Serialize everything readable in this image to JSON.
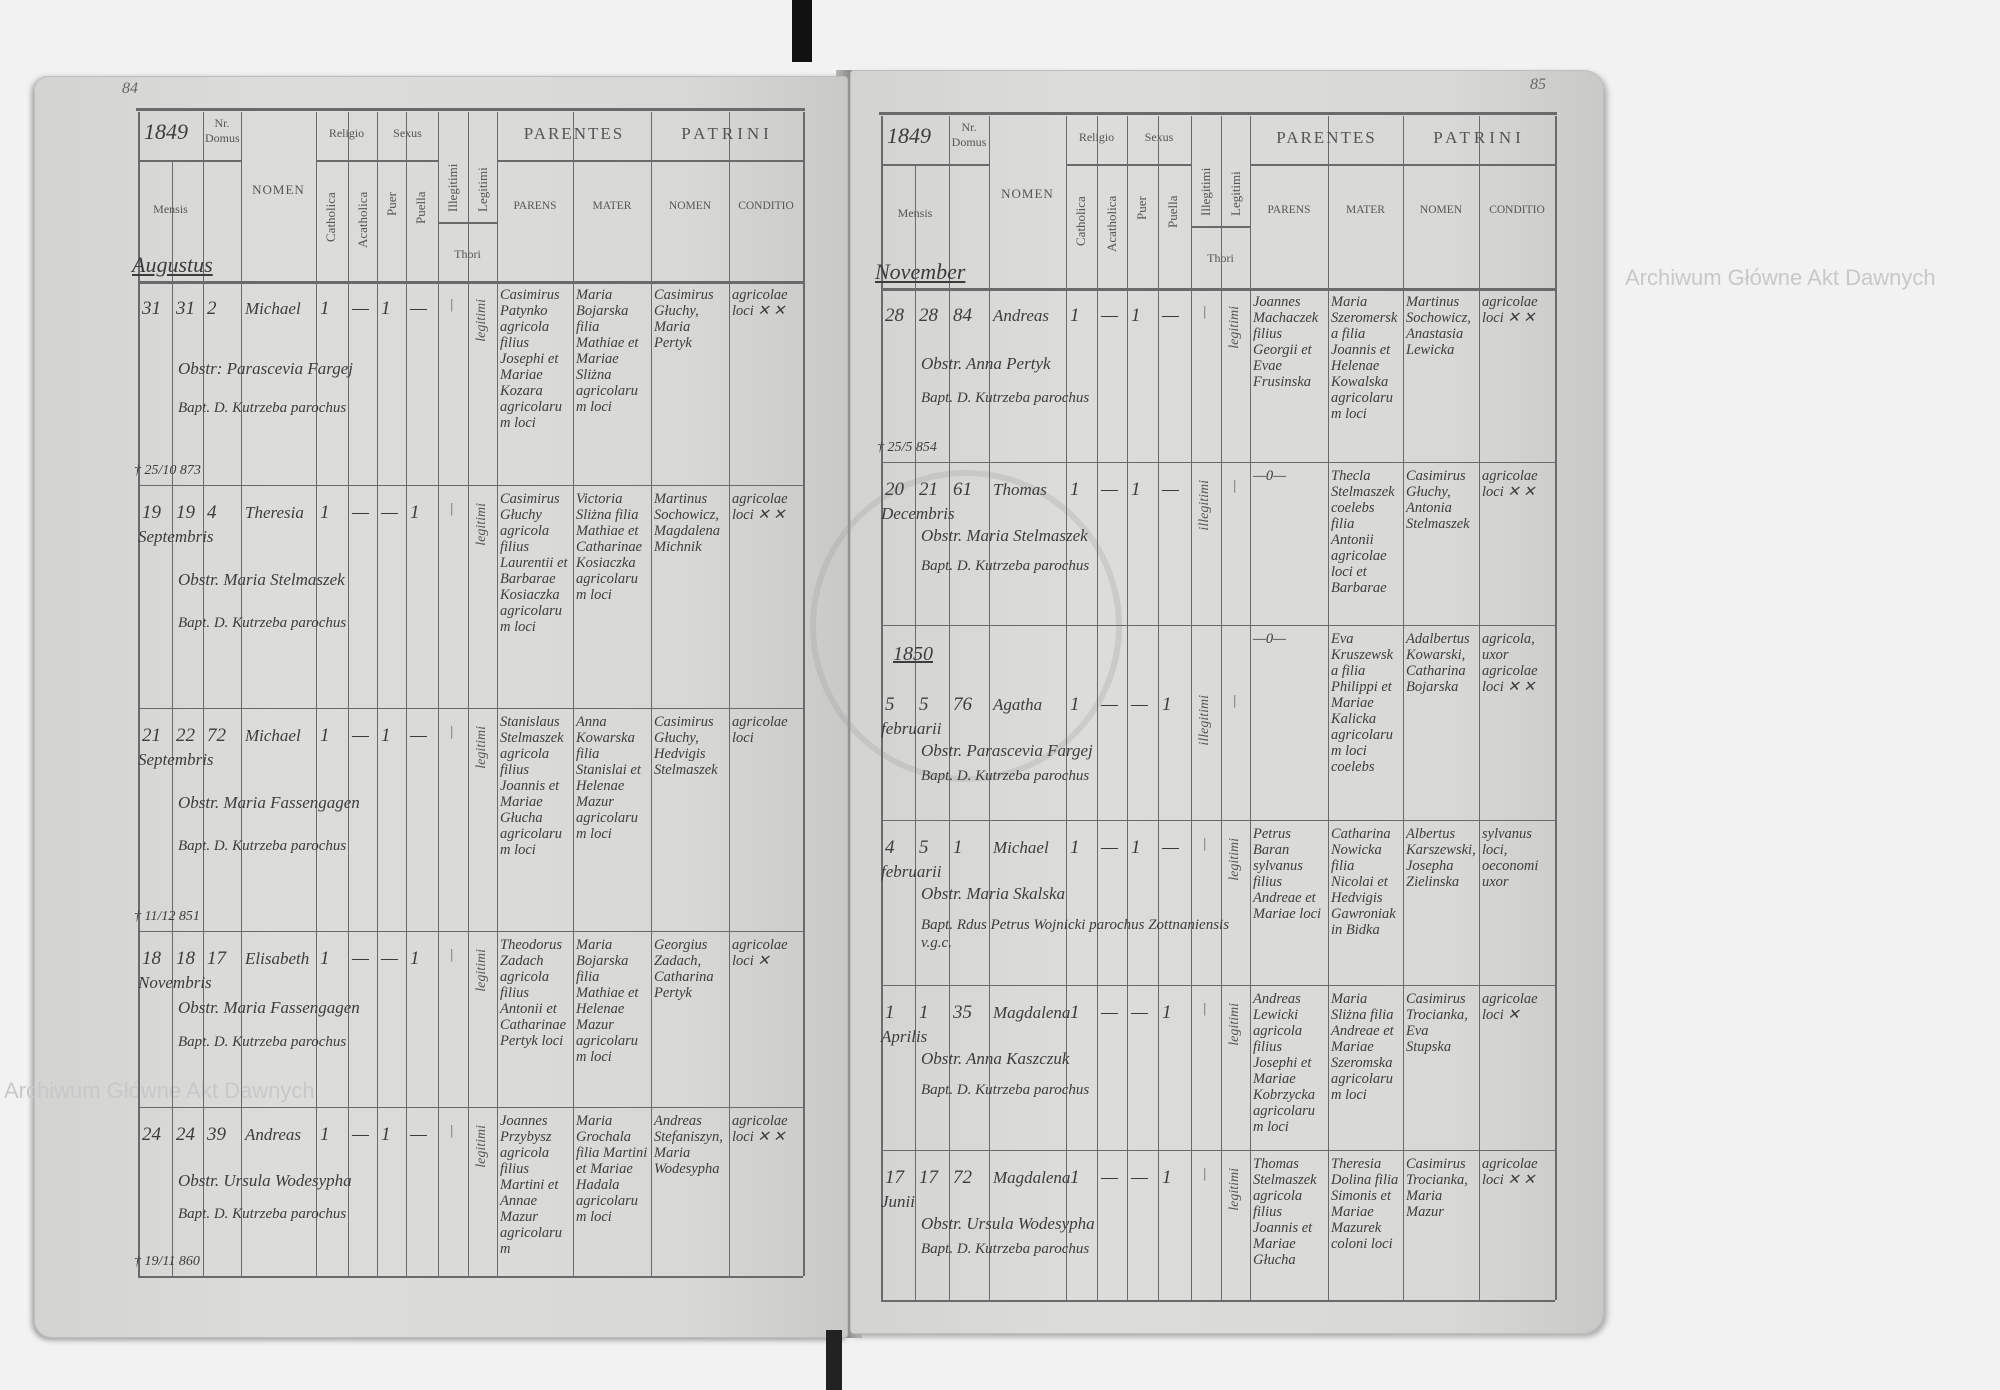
{
  "watermark": "Archiwum Główne Akt Dawnych",
  "seal_text": "ARCHIWUM GŁÓWNE AKT DAWNYCH",
  "header": {
    "year_print": "18",
    "mensis": "Mensis",
    "nr": "Nr. Domus",
    "nomen": "NOMEN",
    "religio": "Religio",
    "sexus": "Sexus",
    "catholica": "Catholica",
    "acatholica": "Acatholica",
    "puer": "Puer",
    "puella": "Puella",
    "illegitimi": "Illegitimi",
    "legitimi": "Legitimi",
    "thori": "Thori",
    "parentes": "PARENTES",
    "patrini": "PATRINI",
    "parens": "PARENS",
    "mater": "MATER",
    "patrini_nomen": "NOMEN",
    "conditio": "CONDITIO"
  },
  "pages": [
    {
      "page_number": "84",
      "year": "1849",
      "month_heading": "Augustus",
      "rows": [
        {
          "birth": "31",
          "bapt": "31",
          "domus": "2",
          "nomen": "Michael",
          "cath": "1",
          "acath": "—",
          "puer": "1",
          "puella": "—",
          "illeg": "—",
          "thori": "legitimi",
          "month": "",
          "parens": "Casimirus Patynko agricola filius Josephi et Mariae Kozara agricolarum loci",
          "mater": "Maria Bojarska filia Mathiae et Mariae Sliżna agricolarum loci",
          "patrini": "Casimirus Głuchy, Maria Pertyk",
          "conditio": "agricolae loci ✕ ✕",
          "obst": "Obstr: Parascevia Fargej",
          "baptizans": "Bapt. D. Kutrzeba parochus",
          "death": "† 25/10 873"
        },
        {
          "birth": "19",
          "bapt": "19",
          "domus": "4",
          "nomen": "Theresia",
          "cath": "1",
          "acath": "—",
          "puer": "—",
          "puella": "1",
          "illeg": "—",
          "thori": "legitimi",
          "month": "Septembris",
          "parens": "Casimirus Głuchy agricola filius Laurentii et Barbarae Kosiaczka agricolarum loci",
          "mater": "Victoria Sliżna filia Mathiae et Catharinae Kosiaczka agricolarum loci",
          "patrini": "Martinus Sochowicz, Magdalena Michnik",
          "conditio": "agricolae loci ✕ ✕",
          "obst": "Obstr. Maria Stelmaszek",
          "baptizans": "Bapt. D. Kutrzeba parochus",
          "death": ""
        },
        {
          "birth": "21",
          "bapt": "22",
          "domus": "72",
          "nomen": "Michael",
          "cath": "1",
          "acath": "—",
          "puer": "1",
          "puella": "—",
          "illeg": "—",
          "thori": "legitimi",
          "month": "Septembris",
          "parens": "Stanislaus Stelmaszek agricola filius Joannis et Mariae Głucha agricolarum loci",
          "mater": "Anna Kowarska filia Stanislai et Helenae Mazur agricolarum loci",
          "patrini": "Casimirus Głuchy, Hedvigis Stelmaszek",
          "conditio": "agricolae loci",
          "obst": "Obstr. Maria Fassengagen",
          "baptizans": "Bapt. D. Kutrzeba parochus",
          "death": "† 11/12 851"
        },
        {
          "birth": "18",
          "bapt": "18",
          "domus": "17",
          "nomen": "Elisabeth",
          "cath": "1",
          "acath": "—",
          "puer": "—",
          "puella": "1",
          "illeg": "—",
          "thori": "legitimi",
          "month": "Novembris",
          "parens": "Theodorus Zadach agricola filius Antonii et Catharinae Pertyk loci",
          "mater": "Maria Bojarska filia Mathiae et Helenae Mazur agricolarum loci",
          "patrini": "Georgius Zadach, Catharina Pertyk",
          "conditio": "agricolae loci ✕",
          "obst": "Obstr. Maria Fassengagen",
          "baptizans": "Bapt. D. Kutrzeba parochus",
          "death": ""
        },
        {
          "birth": "24",
          "bapt": "24",
          "domus": "39",
          "nomen": "Andreas",
          "cath": "1",
          "acath": "—",
          "puer": "1",
          "puella": "—",
          "illeg": "—",
          "thori": "legitimi",
          "month": "",
          "parens": "Joannes Przybysz agricola filius Martini et Annae Mazur agricolarum",
          "mater": "Maria Grochala filia Martini et Mariae Hadala agricolarum loci",
          "patrini": "Andreas Stefaniszyn, Maria Wodesypha",
          "conditio": "agricolae loci ✕ ✕",
          "obst": "Obstr. Ursula Wodesypha",
          "baptizans": "Bapt. D. Kutrzeba parochus",
          "death": "† 19/11 860"
        }
      ]
    },
    {
      "page_number": "85",
      "year": "1849",
      "month_heading": "November",
      "rows": [
        {
          "birth": "28",
          "bapt": "28",
          "domus": "84",
          "nomen": "Andreas",
          "cath": "1",
          "acath": "—",
          "puer": "1",
          "puella": "—",
          "illeg": "—",
          "thori": "legitimi",
          "month": "",
          "parens": "Joannes Machaczek filius Georgii et Evae Frusinska",
          "mater": "Maria Szeromerska filia Joannis et Helenae Kowalska agricolarum loci",
          "patrini": "Martinus Sochowicz, Anastasia Lewicka",
          "conditio": "agricolae loci ✕ ✕",
          "obst": "Obstr. Anna Pertyk",
          "baptizans": "Bapt. D. Kutrzeba parochus",
          "death": "† 25/5 854"
        },
        {
          "birth": "20",
          "bapt": "21",
          "domus": "61",
          "nomen": "Thomas",
          "cath": "1",
          "acath": "—",
          "puer": "1",
          "puella": "—",
          "illeg": "illegitimi",
          "thori": "—",
          "month": "Decembris",
          "parens": "—0—",
          "mater": "Thecla Stelmaszek coelebs filia Antonii agricolae loci et Barbarae",
          "patrini": "Casimirus Głuchy, Antonia Stelmaszek",
          "conditio": "agricolae loci ✕ ✕",
          "obst": "Obstr. Maria Stelmaszek",
          "baptizans": "Bapt. D. Kutrzeba parochus",
          "death": "",
          "year_mark": ""
        },
        {
          "birth": "5",
          "bapt": "5",
          "domus": "76",
          "nomen": "Agatha",
          "cath": "1",
          "acath": "—",
          "puer": "—",
          "puella": "1",
          "illeg": "illegitimi",
          "thori": "—",
          "month": "februarii",
          "parens": "—0—",
          "mater": "Eva Kruszewska filia Philippi et Mariae Kalicka agricolarum loci coelebs",
          "patrini": "Adalbertus Kowarski, Catharina Bojarska",
          "conditio": "agricola, uxor agricolae loci ✕ ✕",
          "obst": "Obstr. Parascevia Fargej",
          "baptizans": "Bapt. D. Kutrzeba parochus",
          "death": "",
          "year_mark": "1850"
        },
        {
          "birth": "4",
          "bapt": "5",
          "domus": "1",
          "nomen": "Michael",
          "cath": "1",
          "acath": "—",
          "puer": "1",
          "puella": "—",
          "illeg": "—",
          "thori": "legitimi",
          "month": "februarii",
          "parens": "Petrus Baran sylvanus filius Andreae et Mariae loci",
          "mater": "Catharina Nowicka filia Nicolai et Hedvigis Gawroniak in Bidka",
          "patrini": "Albertus Karszewski, Josepha Zielinska",
          "conditio": "sylvanus loci, oeconomi uxor",
          "obst": "Obstr. Maria Skalska",
          "baptizans": "Bapt. Rdus Petrus Wojnicki parochus Zottnaniensis v.g.c.",
          "death": ""
        },
        {
          "birth": "1",
          "bapt": "1",
          "domus": "35",
          "nomen": "Magdalena",
          "cath": "1",
          "acath": "—",
          "puer": "—",
          "puella": "1",
          "illeg": "—",
          "thori": "legitimi",
          "month": "Aprilis",
          "parens": "Andreas Lewicki agricola filius Josephi et Mariae Kobrzycka agricolarum loci",
          "mater": "Maria Sliżna filia Andreae et Mariae Szeromska agricolarum loci",
          "patrini": "Casimirus Trocianka, Eva Stupska",
          "conditio": "agricolae loci ✕",
          "obst": "Obstr. Anna Kaszczuk",
          "baptizans": "Bapt. D. Kutrzeba parochus",
          "death": ""
        },
        {
          "birth": "17",
          "bapt": "17",
          "domus": "72",
          "nomen": "Magdalena",
          "cath": "1",
          "acath": "—",
          "puer": "—",
          "puella": "1",
          "illeg": "—",
          "thori": "legitimi",
          "month": "Junii",
          "parens": "Thomas Stelmaszek agricola filius Joannis et Mariae Głucha",
          "mater": "Theresia Dolina filia Simonis et Mariae Mazurek coloni loci",
          "patrini": "Casimirus Trocianka, Maria Mazur",
          "conditio": "agricolae loci ✕ ✕",
          "obst": "Obstr. Ursula Wodesypha",
          "baptizans": "Bapt. D. Kutrzeba parochus",
          "death": ""
        }
      ]
    }
  ]
}
